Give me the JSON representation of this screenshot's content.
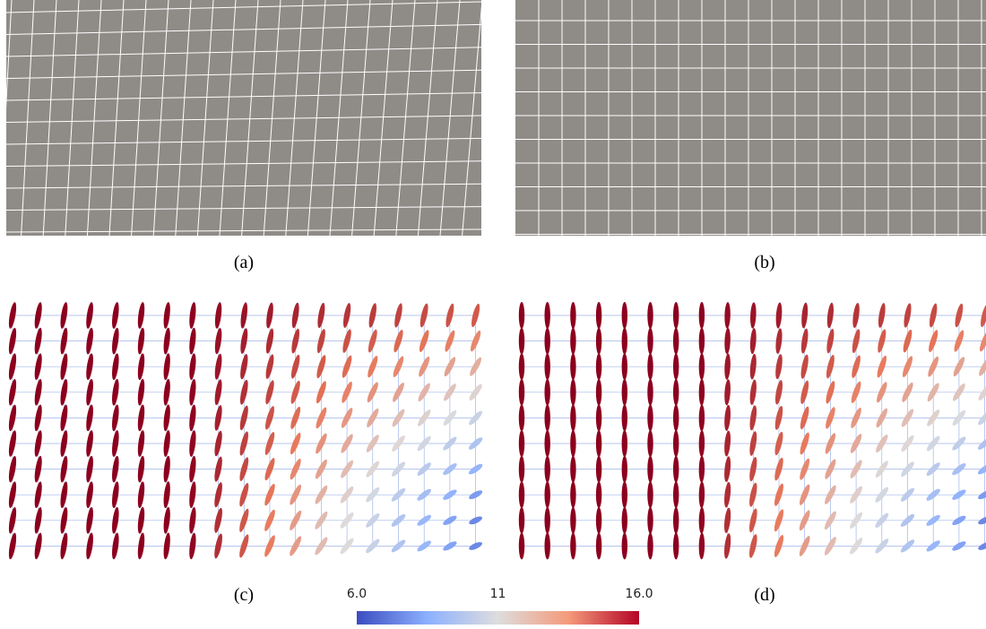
{
  "panels": [
    {
      "label": "(a)"
    },
    {
      "label": "(b)"
    },
    {
      "label": "(c)"
    },
    {
      "label": "(d)"
    }
  ],
  "colorbar": {
    "lim": [
      6,
      16
    ],
    "ticks": [
      {
        "value": 6,
        "label": "6.0"
      },
      11,
      {
        "value": 16,
        "label": "16.0"
      }
    ]
  }
}
